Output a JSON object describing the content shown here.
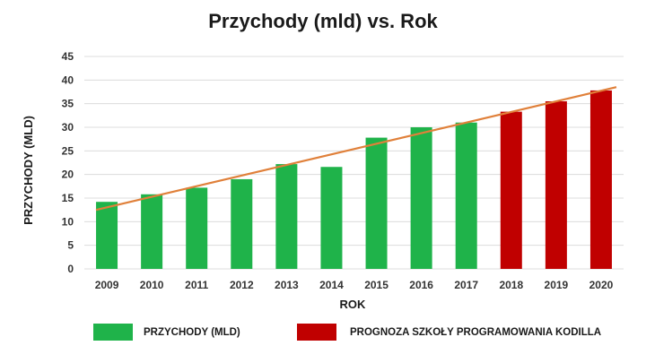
{
  "chart_data": {
    "type": "bar",
    "title": "Przychody (mld) vs. Rok",
    "xlabel": "ROK",
    "ylabel": "PRZYCHODY (MLD)",
    "ylim": [
      0,
      45
    ],
    "yticks": [
      "0",
      "5",
      "10",
      "15",
      "20",
      "25",
      "30",
      "35",
      "40",
      "45"
    ],
    "grid": true,
    "categories": [
      "2009",
      "2010",
      "2011",
      "2012",
      "2013",
      "2014",
      "2015",
      "2016",
      "2017",
      "2018",
      "2019",
      "2020"
    ],
    "values": [
      14.2,
      15.8,
      17.2,
      19.0,
      22.2,
      21.6,
      27.8,
      30.0,
      31.0,
      33.3,
      35.5,
      37.8
    ],
    "series": [
      {
        "name": "PRZYCHODY (MLD)",
        "color": "#1fb34a",
        "years": [
          "2009",
          "2010",
          "2011",
          "2012",
          "2013",
          "2014",
          "2015",
          "2016",
          "2017"
        ]
      },
      {
        "name": "PROGNOZA SZKOŁY PROGRAMOWANIA KODILLA",
        "color": "#c00000",
        "years": [
          "2018",
          "2019",
          "2020"
        ]
      }
    ],
    "trendline": {
      "color": "#e0803a",
      "start": 12.5,
      "end": 38.5
    },
    "legend": "bottom"
  }
}
